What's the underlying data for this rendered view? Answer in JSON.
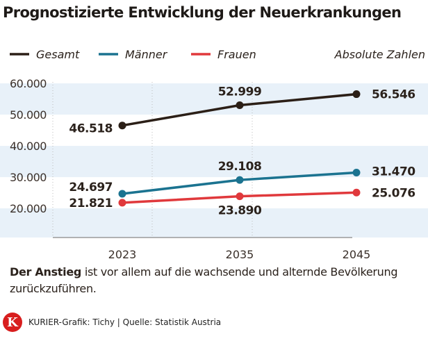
{
  "chart_data": {
    "type": "line",
    "title": "Prognostizierte Entwicklung der Neuerkrankungen",
    "unit_label": "Absolute Zahlen",
    "categories": [
      "2023",
      "2035",
      "2045"
    ],
    "yticks": [
      "60.000",
      "50.000",
      "40.000",
      "30.000",
      "20.000"
    ],
    "ytick_values": [
      60000,
      50000,
      40000,
      30000,
      20000
    ],
    "ylim": [
      10700,
      60000
    ],
    "grid": "horizontal bands",
    "legend": "top",
    "series": [
      {
        "name": "Gesamt",
        "color": "#2b1f17",
        "values": [
          46518,
          52999,
          56546
        ],
        "labels": [
          "46.518",
          "52.999",
          "56.546"
        ]
      },
      {
        "name": "Männer",
        "color": "#1b7390",
        "values": [
          24697,
          29108,
          31470
        ],
        "labels": [
          "24.697",
          "29.108",
          "31.470"
        ]
      },
      {
        "name": "Frauen",
        "color": "#e0393c",
        "values": [
          21821,
          23890,
          25076
        ],
        "labels": [
          "21.821",
          "23.890",
          "25.076"
        ]
      }
    ]
  },
  "note": {
    "bold": "Der Anstieg",
    "text": " ist vor allem auf die wachsende und alternde Bevölkerung zurückzuführen."
  },
  "footer": {
    "logo": "K",
    "credit": "KURIER-Grafik: Tichy  | Quelle: Statistik Austria"
  },
  "colors": {
    "band": "#e8f1f9"
  }
}
